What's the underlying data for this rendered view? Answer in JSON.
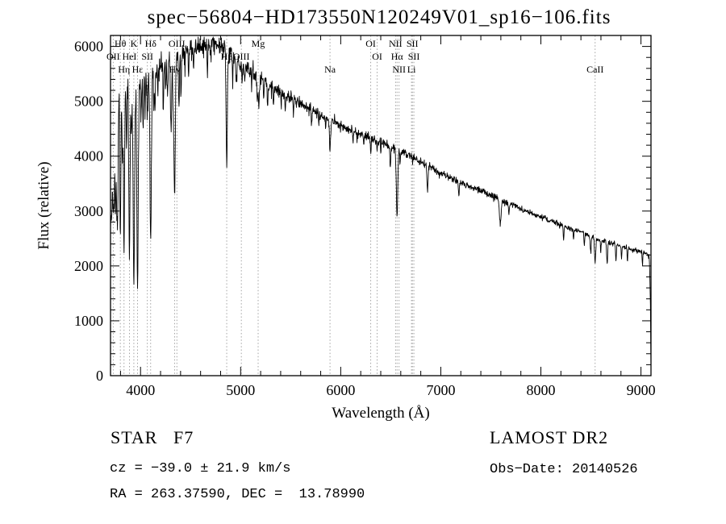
{
  "annotations": {
    "class_line": "STAR   F7",
    "survey": "LAMOST DR2",
    "cz_line": "cz = −39.0 ± 21.9 km/s",
    "obs_date": "Obs−Date: 20140526",
    "ra_dec": "RA = 263.37590, DEC =  13.78990"
  },
  "chart_data": {
    "type": "line",
    "title": "spec−56804−HD173550N120249V01_sp16−106.fits",
    "xlabel": "Wavelength (Å)",
    "ylabel": "Flux (relative)",
    "xlim": [
      3700,
      9100
    ],
    "ylim": [
      0,
      6200
    ],
    "x_ticks": [
      4000,
      5000,
      6000,
      7000,
      8000,
      9000
    ],
    "y_ticks": [
      0,
      1000,
      2000,
      3000,
      4000,
      5000,
      6000
    ],
    "x_minor_step": 200,
    "y_minor_step": 200,
    "grid": false,
    "line_color": "#000000",
    "marker_line_color": "#999999",
    "continuum": [
      [
        3700,
        2900
      ],
      [
        3712,
        4300
      ],
      [
        3725,
        4800
      ],
      [
        3760,
        5000
      ],
      [
        3800,
        5100
      ],
      [
        3850,
        5200
      ],
      [
        3900,
        5300
      ],
      [
        3950,
        5350
      ],
      [
        4000,
        5400
      ],
      [
        4100,
        5500
      ],
      [
        4200,
        5650
      ],
      [
        4300,
        5750
      ],
      [
        4400,
        5850
      ],
      [
        4500,
        5950
      ],
      [
        4600,
        6000
      ],
      [
        4700,
        6060
      ],
      [
        4780,
        6050
      ],
      [
        4850,
        5950
      ],
      [
        4950,
        5750
      ],
      [
        5000,
        5650
      ],
      [
        5100,
        5550
      ],
      [
        5200,
        5400
      ],
      [
        5300,
        5300
      ],
      [
        5400,
        5150
      ],
      [
        5500,
        5050
      ],
      [
        5600,
        4950
      ],
      [
        5700,
        4850
      ],
      [
        5800,
        4750
      ],
      [
        5900,
        4650
      ],
      [
        6000,
        4550
      ],
      [
        6100,
        4500
      ],
      [
        6200,
        4400
      ],
      [
        6300,
        4320
      ],
      [
        6400,
        4250
      ],
      [
        6500,
        4150
      ],
      [
        6600,
        4080
      ],
      [
        6700,
        4000
      ],
      [
        6800,
        3900
      ],
      [
        6900,
        3800
      ],
      [
        7000,
        3680
      ],
      [
        7100,
        3600
      ],
      [
        7200,
        3520
      ],
      [
        7300,
        3430
      ],
      [
        7400,
        3370
      ],
      [
        7500,
        3290
      ],
      [
        7600,
        3200
      ],
      [
        7700,
        3130
      ],
      [
        7800,
        3040
      ],
      [
        7900,
        2960
      ],
      [
        8000,
        2890
      ],
      [
        8100,
        2820
      ],
      [
        8200,
        2750
      ],
      [
        8300,
        2680
      ],
      [
        8400,
        2610
      ],
      [
        8500,
        2540
      ],
      [
        8600,
        2470
      ],
      [
        8700,
        2420
      ],
      [
        8800,
        2360
      ],
      [
        8900,
        2300
      ],
      [
        9000,
        2260
      ],
      [
        9040,
        2230
      ],
      [
        9070,
        2200
      ],
      [
        9085,
        2120
      ],
      [
        9095,
        1200
      ],
      [
        9100,
        150
      ]
    ],
    "absorption_lines": [
      [
        3712,
        1500,
        5
      ],
      [
        3727,
        1800,
        5
      ],
      [
        3737,
        1500,
        4
      ],
      [
        3750,
        2000,
        5
      ],
      [
        3762,
        1400,
        4
      ],
      [
        3771,
        2200,
        5
      ],
      [
        3798,
        2600,
        5
      ],
      [
        3820,
        1300,
        4
      ],
      [
        3835,
        2900,
        5
      ],
      [
        3860,
        1100,
        4
      ],
      [
        3889,
        3100,
        6
      ],
      [
        3910,
        900,
        4
      ],
      [
        3933,
        3700,
        7
      ],
      [
        3970,
        3800,
        7
      ],
      [
        4005,
        700,
        4
      ],
      [
        4026,
        900,
        4
      ],
      [
        4045,
        600,
        3
      ],
      [
        4068,
        800,
        4
      ],
      [
        4101,
        3000,
        7
      ],
      [
        4132,
        600,
        3
      ],
      [
        4144,
        700,
        4
      ],
      [
        4172,
        500,
        3
      ],
      [
        4227,
        800,
        4
      ],
      [
        4250,
        500,
        3
      ],
      [
        4271,
        700,
        4
      ],
      [
        4305,
        1300,
        6
      ],
      [
        4325,
        700,
        4
      ],
      [
        4340,
        2500,
        7
      ],
      [
        4383,
        1000,
        4
      ],
      [
        4405,
        800,
        4
      ],
      [
        4444,
        400,
        3
      ],
      [
        4481,
        500,
        3
      ],
      [
        4530,
        400,
        4
      ],
      [
        4668,
        500,
        4
      ],
      [
        4703,
        300,
        3
      ],
      [
        4861,
        2100,
        6
      ],
      [
        4920,
        500,
        4
      ],
      [
        4957,
        400,
        4
      ],
      [
        5015,
        300,
        3
      ],
      [
        5041,
        250,
        3
      ],
      [
        5110,
        300,
        3
      ],
      [
        5167,
        500,
        5
      ],
      [
        5183,
        550,
        5
      ],
      [
        5230,
        300,
        3
      ],
      [
        5270,
        500,
        4
      ],
      [
        5328,
        350,
        3
      ],
      [
        5405,
        300,
        3
      ],
      [
        5446,
        250,
        3
      ],
      [
        5528,
        250,
        3
      ],
      [
        5711,
        200,
        3
      ],
      [
        5782,
        200,
        3
      ],
      [
        5850,
        200,
        3
      ],
      [
        5893,
        550,
        6
      ],
      [
        6122,
        250,
        3
      ],
      [
        6162,
        250,
        3
      ],
      [
        6230,
        200,
        3
      ],
      [
        6300,
        250,
        3
      ],
      [
        6364,
        150,
        3
      ],
      [
        6400,
        200,
        3
      ],
      [
        6495,
        350,
        4
      ],
      [
        6563,
        1200,
        7
      ],
      [
        6593,
        200,
        3
      ],
      [
        6867,
        450,
        6
      ],
      [
        7180,
        250,
        4
      ],
      [
        7594,
        450,
        8
      ],
      [
        7680,
        200,
        4
      ],
      [
        8227,
        250,
        4
      ],
      [
        8327,
        200,
        3
      ],
      [
        8434,
        250,
        3
      ],
      [
        8498,
        300,
        5
      ],
      [
        8542,
        450,
        6
      ],
      [
        8598,
        250,
        3
      ],
      [
        8662,
        400,
        5
      ],
      [
        8750,
        300,
        4
      ],
      [
        8806,
        200,
        3
      ],
      [
        8865,
        250,
        3
      ],
      [
        9015,
        250,
        3
      ]
    ],
    "noise": {
      "seed": 20140526,
      "percent": [
        [
          3700,
          3.5
        ],
        [
          4000,
          2.4
        ],
        [
          4500,
          1.6
        ],
        [
          5000,
          1.3
        ],
        [
          6000,
          1.0
        ],
        [
          7000,
          0.9
        ],
        [
          8000,
          0.9
        ],
        [
          9100,
          1.0
        ]
      ]
    },
    "spectral_line_labels": [
      {
        "label": "Hθ",
        "wavelength": 3798,
        "row": 1
      },
      {
        "label": "K",
        "wavelength": 3933,
        "row": 1
      },
      {
        "label": "Hδ",
        "wavelength": 4101,
        "row": 1
      },
      {
        "label": "OIII",
        "wavelength": 4363,
        "row": 1
      },
      {
        "label": "Mg",
        "wavelength": 5175,
        "row": 1
      },
      {
        "label": "OI",
        "wavelength": 6300,
        "row": 1
      },
      {
        "label": "NII",
        "wavelength": 6548,
        "row": 1
      },
      {
        "label": "SII",
        "wavelength": 6716,
        "row": 1
      },
      {
        "label": "OII",
        "wavelength": 3727,
        "row": 2
      },
      {
        "label": "HeI",
        "wavelength": 3889,
        "row": 2
      },
      {
        "label": "SII",
        "wavelength": 4068,
        "row": 2
      },
      {
        "label": "Hβ",
        "wavelength": 4861,
        "row": 2
      },
      {
        "label": "OIII",
        "wavelength": 5007,
        "row": 2
      },
      {
        "label": "OI",
        "wavelength": 6364,
        "row": 2
      },
      {
        "label": "Hα",
        "wavelength": 6563,
        "row": 2
      },
      {
        "label": "SII",
        "wavelength": 6731,
        "row": 2
      },
      {
        "label": "Hη",
        "wavelength": 3835,
        "row": 3
      },
      {
        "label": "Hε",
        "wavelength": 3970,
        "row": 3
      },
      {
        "label": "Hγ",
        "wavelength": 4340,
        "row": 3
      },
      {
        "label": "Na",
        "wavelength": 5893,
        "row": 3
      },
      {
        "label": "NII",
        "wavelength": 6583,
        "row": 3
      },
      {
        "label": "Li",
        "wavelength": 6707,
        "row": 3
      },
      {
        "label": "CaII",
        "wavelength": 8542,
        "row": 3
      }
    ]
  }
}
